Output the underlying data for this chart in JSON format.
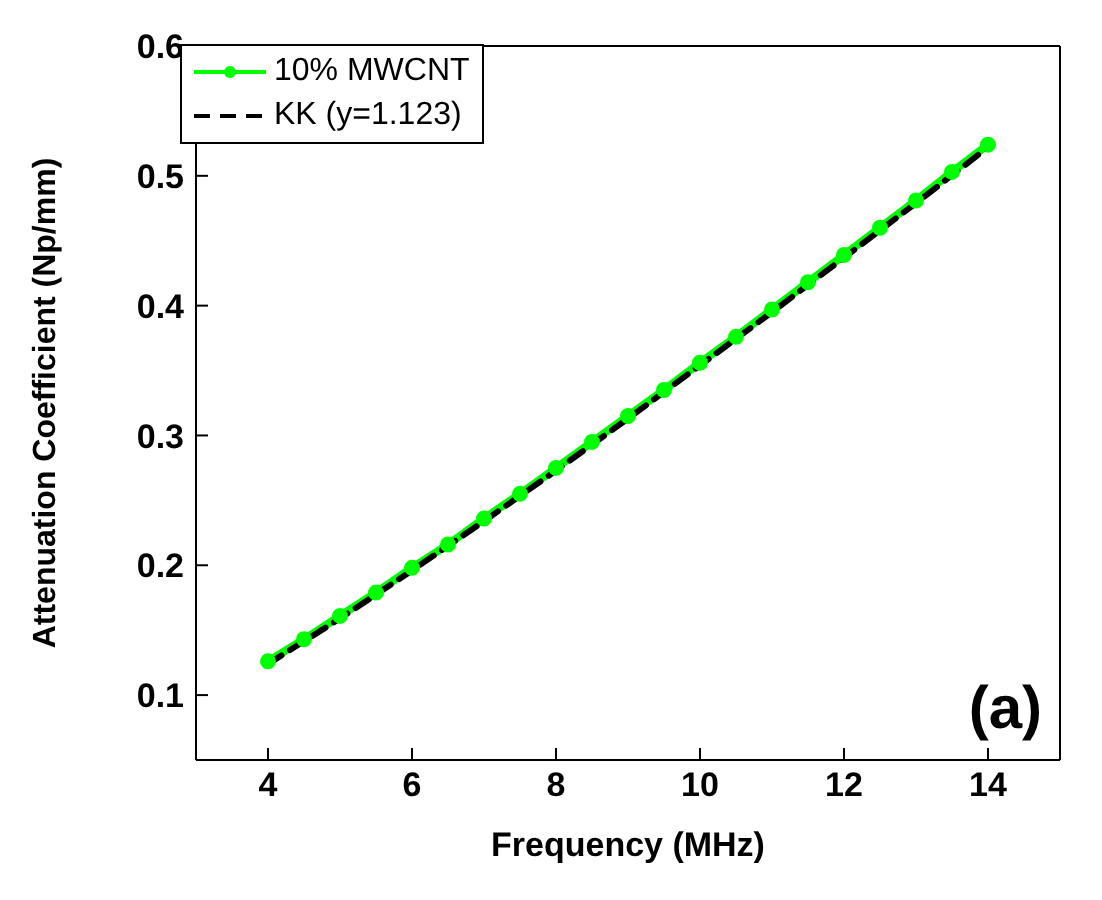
{
  "chart_data": {
    "type": "line",
    "xlabel": "Frequency (MHz)",
    "ylabel": "Attenuation Coefficient (Np/mm)",
    "xlim": [
      3,
      15
    ],
    "xticks": [
      4,
      6,
      8,
      10,
      12,
      14
    ],
    "ylim": [
      0.05,
      0.6
    ],
    "yticks": [
      0.1,
      0.2,
      0.3,
      0.4,
      0.5,
      0.6
    ],
    "legend": "top left",
    "annotations": [
      "(a)"
    ],
    "series": [
      {
        "name": "10% MWCNT",
        "color": "#00ff00",
        "marker": "circle",
        "line_style": "solid",
        "x": [
          4,
          4.5,
          5,
          5.5,
          6,
          6.5,
          7,
          7.5,
          8,
          8.5,
          9,
          9.5,
          10,
          10.5,
          11,
          11.5,
          12,
          12.5,
          13,
          13.5,
          14
        ],
        "values": [
          0.126,
          0.143,
          0.161,
          0.179,
          0.198,
          0.216,
          0.236,
          0.255,
          0.275,
          0.295,
          0.315,
          0.335,
          0.356,
          0.376,
          0.397,
          0.418,
          0.439,
          0.46,
          0.481,
          0.503,
          0.524
        ]
      },
      {
        "name": "KK (y=1.123)",
        "color": "#000000",
        "marker": "none",
        "line_style": "dashed",
        "x": [
          4,
          5,
          6,
          7,
          8,
          9,
          10,
          11,
          12,
          13,
          14
        ],
        "values": [
          0.124,
          0.159,
          0.196,
          0.234,
          0.273,
          0.313,
          0.354,
          0.395,
          0.437,
          0.479,
          0.522
        ]
      }
    ]
  }
}
